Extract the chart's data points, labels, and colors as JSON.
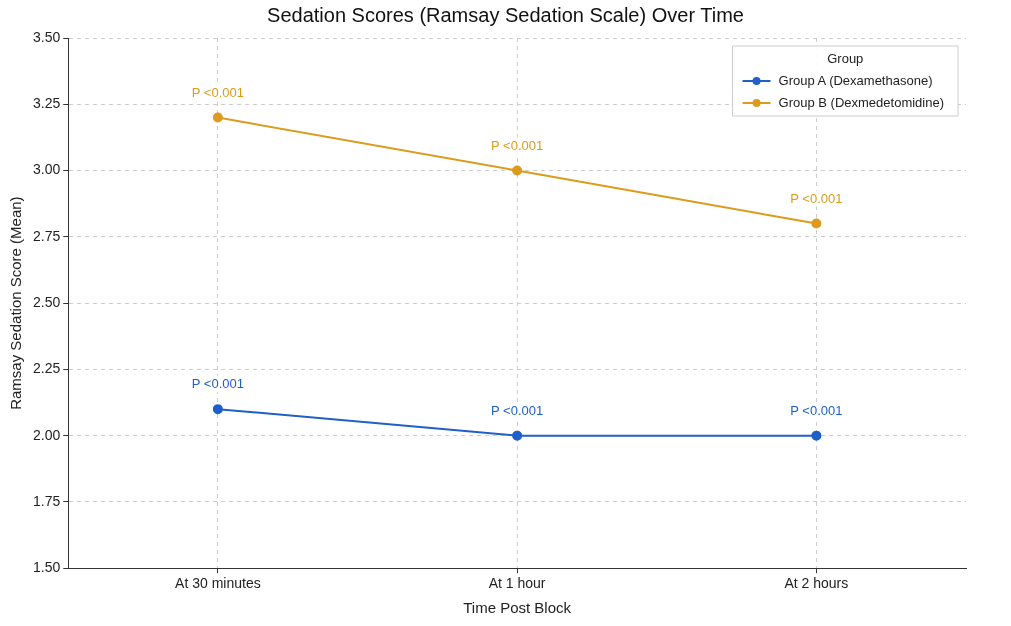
{
  "chart_data": {
    "type": "line",
    "title": "Sedation Scores (Ramsay Sedation Scale) Over Time",
    "xlabel": "Time Post Block",
    "ylabel": "Ramsay Sedation Score (Mean)",
    "legend_title": "Group",
    "categories": [
      "At 30 minutes",
      "At 1 hour",
      "At 2 hours"
    ],
    "series": [
      {
        "name": "Group A (Dexamethasone)",
        "color": "#1f5fc8",
        "values": [
          2.1,
          2.0,
          2.0
        ]
      },
      {
        "name": "Group B (Dexmedetomidine)",
        "color": "#dc9b1c",
        "values": [
          3.2,
          3.0,
          2.8
        ]
      }
    ],
    "ylim": [
      1.5,
      3.5
    ],
    "yticks": [
      {
        "value": 1.5,
        "label": "1.50"
      },
      {
        "value": 1.75,
        "label": "1.75"
      },
      {
        "value": 2.0,
        "label": "2.00"
      },
      {
        "value": 2.25,
        "label": "2.25"
      },
      {
        "value": 2.5,
        "label": "2.50"
      },
      {
        "value": 2.75,
        "label": "2.75"
      },
      {
        "value": 3.0,
        "label": "3.00"
      },
      {
        "value": 3.25,
        "label": "3.25"
      },
      {
        "value": 3.5,
        "label": "3.50"
      }
    ],
    "grid": true,
    "legend": "top right",
    "marker": "circle",
    "line_style": "solid",
    "annotations": [
      {
        "text": "P <0.001",
        "x": "At 30 minutes",
        "y": 2.1
      },
      {
        "text": "P <0.001",
        "x": "At 1 hour",
        "y": 2.0
      },
      {
        "text": "P <0.001",
        "x": "At 2 hours",
        "y": 2.0
      },
      {
        "text": "P <0.001",
        "x": "At 30 minutes",
        "y": 3.2
      },
      {
        "text": "P <0.001",
        "x": "At 1 hour",
        "y": 3.0
      },
      {
        "text": "P <0.001",
        "x": "At 2 hours",
        "y": 2.8
      }
    ]
  }
}
